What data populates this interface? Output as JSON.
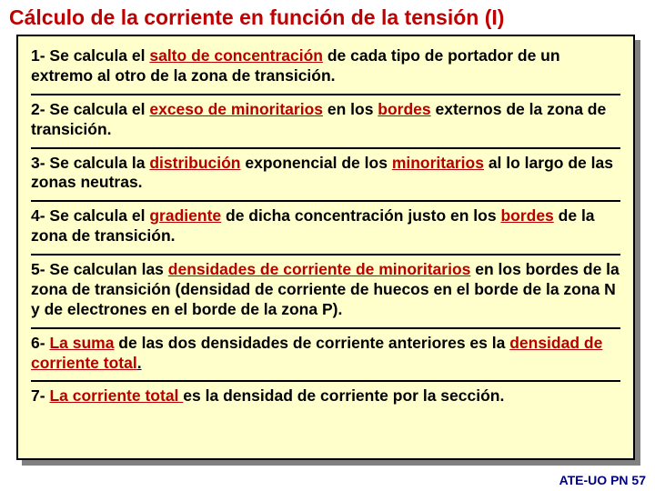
{
  "title": "Cálculo de la corriente en función de la tensión (I)",
  "steps": {
    "s1a": "1- Se calcula  el ",
    "s1b": "salto de concentración",
    "s1c": " de cada tipo de portador de un extremo al otro de la zona de transición.",
    "s2a": "2- Se calcula el ",
    "s2b": "exceso  de minoritarios",
    "s2c": " en los ",
    "s2d": "bordes",
    "s2e": " externos de la zona de transición.",
    "s3a": "3- Se calcula la ",
    "s3b": "distribución",
    "s3c": " exponencial de los ",
    "s3d": "minoritarios",
    "s3e": " al lo largo de las zonas neutras.",
    "s4a": "4- Se calcula el ",
    "s4b": "gradiente",
    "s4c": " de dicha concentración justo en los ",
    "s4d": "bordes",
    "s4e": " de la zona de transición.",
    "s5a": "5- Se calculan las ",
    "s5b": "densidades de corriente de minoritarios",
    "s5c": " en los bordes de la zona de transición (densidad de corriente de huecos en  el borde de la zona N y de electrones en el borde de la zona P).",
    "s6a": "6- ",
    "s6b": "La suma",
    "s6c": " de las dos densidades de corriente anteriores es la ",
    "s6d": "densidad de corriente total",
    "s6e": ".",
    "s7a": "7- ",
    "s7b": "La corriente total ",
    "s7c": "es la densidad de corriente por la sección."
  },
  "footer": "ATE-UO PN 57",
  "colors": {
    "title": "#c00000",
    "box_bg": "#ffffcc",
    "border": "#000000",
    "shadow": "#808080",
    "highlight": "#b80000",
    "footer": "#000080"
  }
}
